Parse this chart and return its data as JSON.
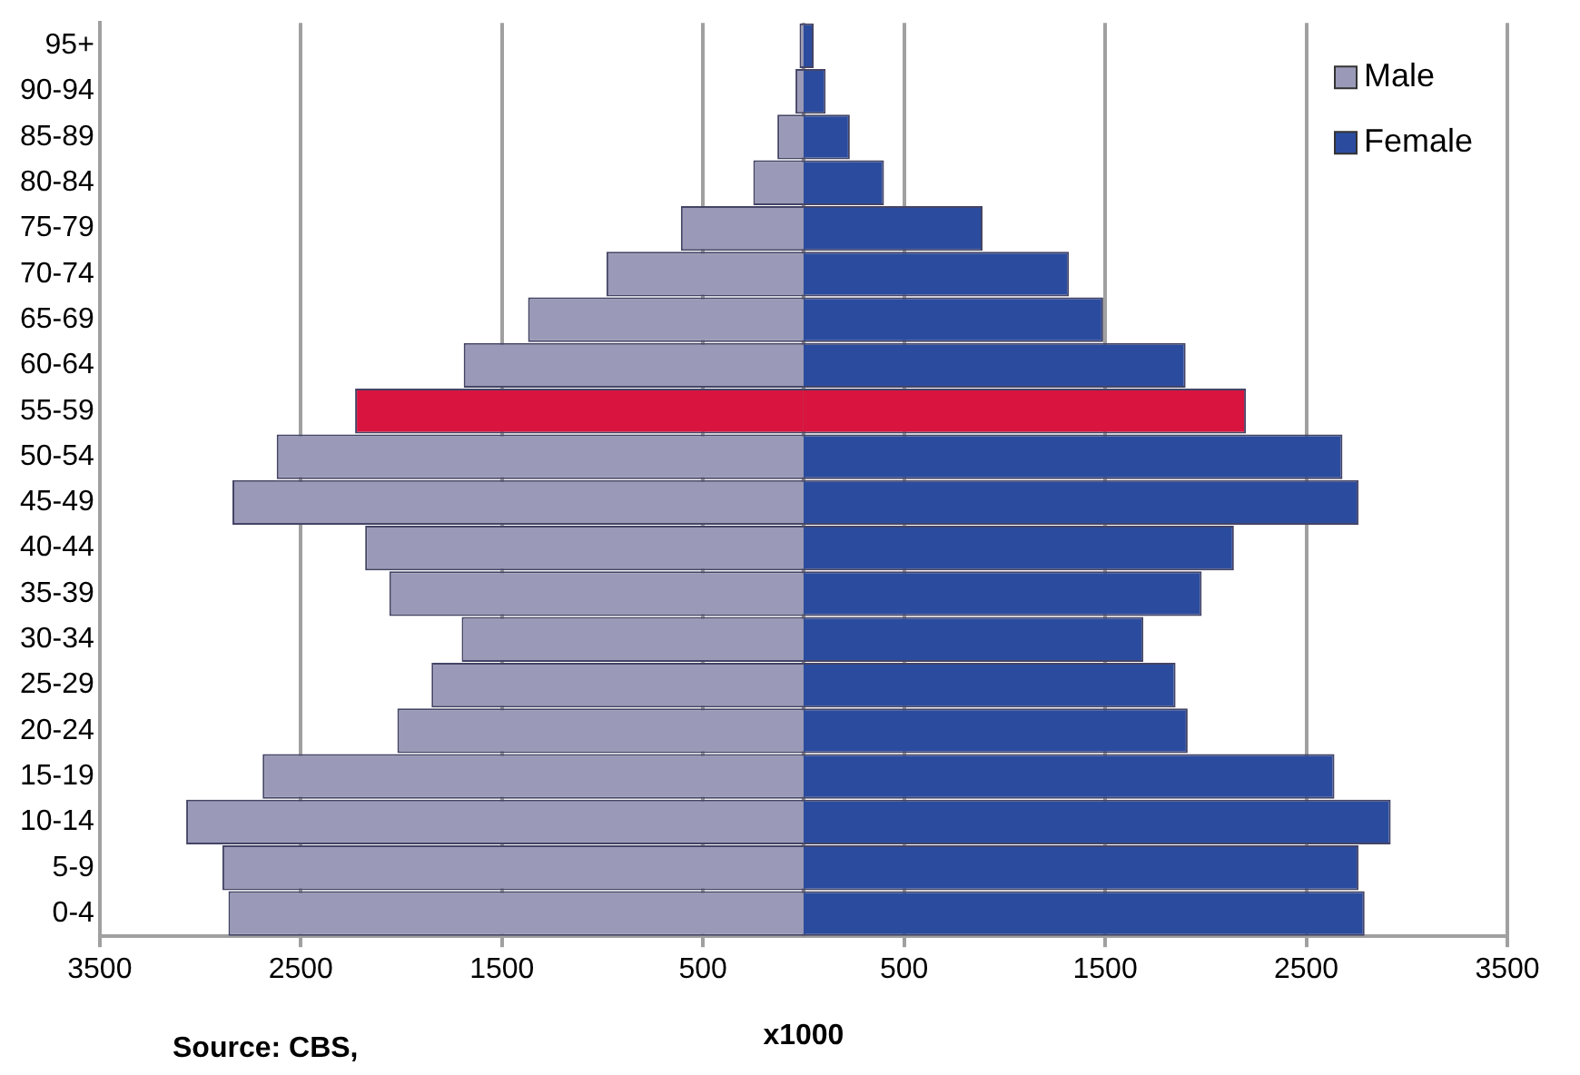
{
  "chart_data": {
    "type": "bar",
    "orientation": "horizontal",
    "stacked": true,
    "categories": [
      "95+",
      "90-94",
      "85-89",
      "80-84",
      "75-79",
      "70-74",
      "65-69",
      "60-64",
      "55-59",
      "50-54",
      "45-49",
      "40-44",
      "35-39",
      "30-34",
      "25-29",
      "20-24",
      "15-19",
      "10-14",
      "5-9",
      "0-4"
    ],
    "series": [
      {
        "name": "Male",
        "color": "#9a9ab8",
        "colors": [
          "#9a9ab8",
          "#9a9ab8",
          "#9a9ab8",
          "#9a9ab8",
          "#9a9ab8",
          "#9a9ab8",
          "#9a9ab8",
          "#9a9ab8",
          "#d8143f",
          "#9a9ab8",
          "#9a9ab8",
          "#9a9ab8",
          "#9a9ab8",
          "#9a9ab8",
          "#9a9ab8",
          "#9a9ab8",
          "#9a9ab8",
          "#9a9ab8",
          "#9a9ab8",
          "#9a9ab8"
        ],
        "values": [
          -20,
          -40,
          -130,
          -250,
          -610,
          -980,
          -1370,
          -1690,
          -2230,
          -2620,
          -2840,
          -2180,
          -2060,
          -1700,
          -1850,
          -2020,
          -2690,
          -3070,
          -2890,
          -2860
        ]
      },
      {
        "name": "Female",
        "color": "#2b4c9e",
        "colors": [
          "#2b4c9e",
          "#2b4c9e",
          "#2b4c9e",
          "#2b4c9e",
          "#2b4c9e",
          "#2b4c9e",
          "#2b4c9e",
          "#2b4c9e",
          "#d8143f",
          "#2b4c9e",
          "#2b4c9e",
          "#2b4c9e",
          "#2b4c9e",
          "#2b4c9e",
          "#2b4c9e",
          "#2b4c9e",
          "#2b4c9e",
          "#2b4c9e",
          "#2b4c9e",
          "#2b4c9e"
        ],
        "values": [
          50,
          110,
          230,
          400,
          890,
          1320,
          1490,
          1900,
          2200,
          2680,
          2760,
          2140,
          1980,
          1690,
          1850,
          1910,
          2640,
          2920,
          2760,
          2790
        ]
      }
    ],
    "xlim": [
      -3500,
      3500
    ],
    "xticks": [
      {
        "value": -3500,
        "label": "3500"
      },
      {
        "value": -2500,
        "label": "2500"
      },
      {
        "value": -1500,
        "label": "1500"
      },
      {
        "value": -500,
        "label": "500"
      },
      500,
      1500,
      2500,
      3500
    ],
    "xlabel": "x1000",
    "grid": "x",
    "legend": "top right",
    "annotations": [
      "Source: CBS,"
    ]
  }
}
